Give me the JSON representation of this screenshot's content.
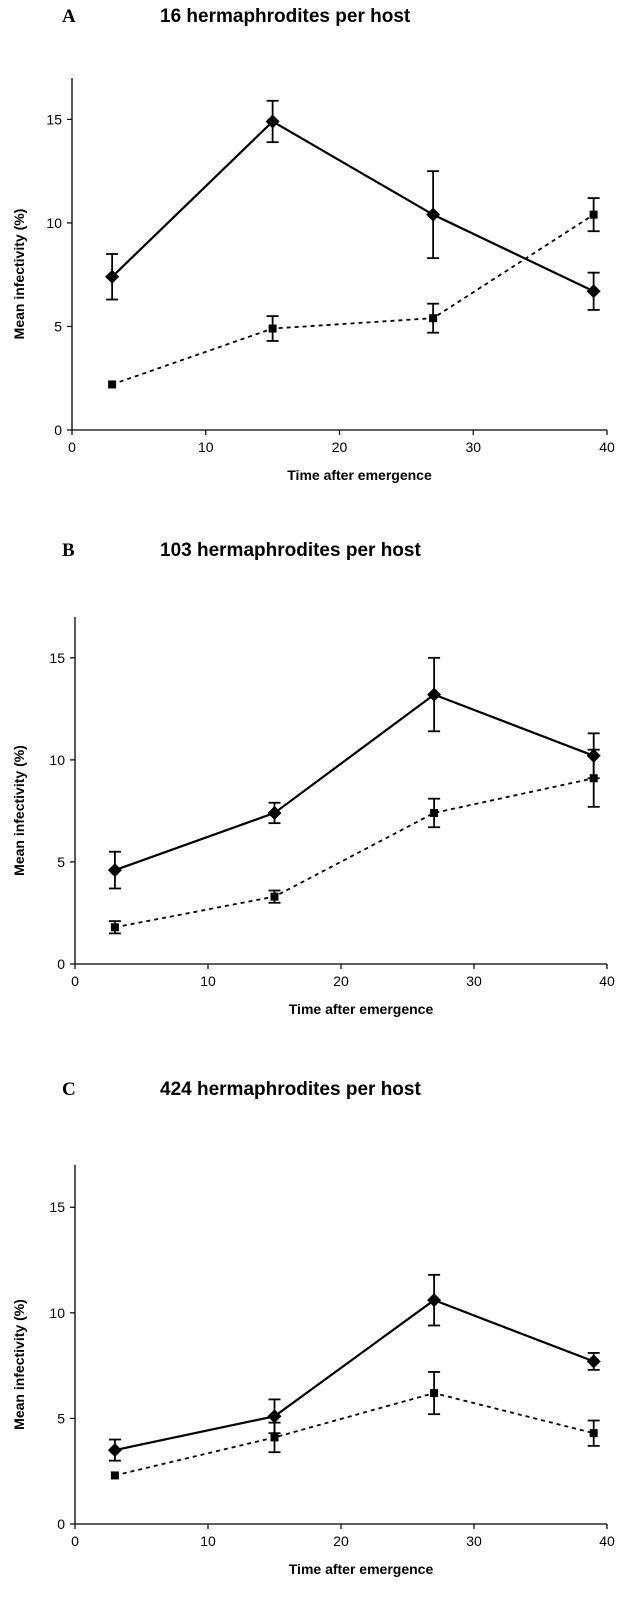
{
  "chart_data": [
    {
      "type": "line",
      "panel_label": "A",
      "title": "16 hermaphrodites per host",
      "xlabel": "Time after emergence",
      "ylabel": "Mean infectivity (%)",
      "xlim": [
        0,
        40
      ],
      "ylim": [
        0,
        17
      ],
      "xticks": [
        0,
        10,
        20,
        30,
        40
      ],
      "yticks": [
        0,
        5,
        10,
        15
      ],
      "series": [
        {
          "marker": "diamond",
          "style": "solid",
          "x": [
            3,
            15,
            27,
            39
          ],
          "values": [
            7.4,
            14.9,
            10.4,
            6.7
          ],
          "err": [
            1.1,
            1.0,
            2.1,
            0.9
          ]
        },
        {
          "marker": "square",
          "style": "dashed",
          "x": [
            3,
            15,
            27,
            39
          ],
          "values": [
            2.2,
            4.9,
            5.4,
            10.4
          ],
          "err": [
            0,
            0.6,
            0.7,
            0.8
          ]
        }
      ]
    },
    {
      "type": "line",
      "panel_label": "B",
      "title": "103 hermaphrodites per host",
      "xlabel": "Time after emergence",
      "ylabel": "Mean infectivity (%)",
      "xlim": [
        0,
        40
      ],
      "ylim": [
        0,
        17
      ],
      "xticks": [
        0,
        10,
        20,
        30,
        40
      ],
      "yticks": [
        0,
        5,
        10,
        15
      ],
      "series": [
        {
          "marker": "diamond",
          "style": "solid",
          "x": [
            3,
            15,
            27,
            39
          ],
          "values": [
            4.6,
            7.4,
            13.2,
            10.2
          ],
          "err": [
            0.9,
            0.5,
            1.8,
            1.1
          ]
        },
        {
          "marker": "square",
          "style": "dashed",
          "x": [
            3,
            15,
            27,
            39
          ],
          "values": [
            1.8,
            3.3,
            7.4,
            9.1
          ],
          "err": [
            0.3,
            0.3,
            0.7,
            1.4
          ]
        }
      ]
    },
    {
      "type": "line",
      "panel_label": "C",
      "title": "424 hermaphrodites per host",
      "xlabel": "Time after emergence",
      "ylabel": "Mean infectivity (%)",
      "xlim": [
        0,
        40
      ],
      "ylim": [
        0,
        17
      ],
      "xticks": [
        0,
        10,
        20,
        30,
        40
      ],
      "yticks": [
        0,
        5,
        10,
        15
      ],
      "series": [
        {
          "marker": "diamond",
          "style": "solid",
          "x": [
            3,
            15,
            27,
            39
          ],
          "values": [
            3.5,
            5.1,
            10.6,
            7.7
          ],
          "err": [
            0.5,
            0.8,
            1.2,
            0.4
          ]
        },
        {
          "marker": "square",
          "style": "dashed",
          "x": [
            3,
            15,
            27,
            39
          ],
          "values": [
            2.3,
            4.1,
            6.2,
            4.3
          ],
          "err": [
            0,
            0.7,
            1.0,
            0.6
          ]
        }
      ]
    }
  ]
}
